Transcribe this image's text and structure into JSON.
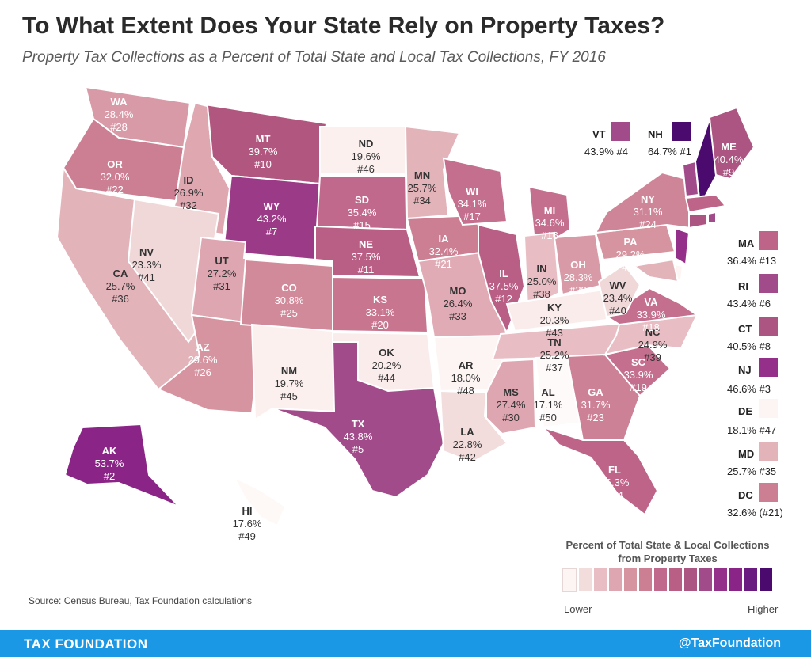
{
  "header": {
    "title": "To What Extent Does Your State Rely on Property Taxes?",
    "subtitle": "Property Tax Collections as a Percent of Total State and Local Tax Collections, FY 2016"
  },
  "states": [
    {
      "abbr": "WA",
      "value": "28.4%",
      "rank": "#28",
      "color": "#d99aa7"
    },
    {
      "abbr": "OR",
      "value": "32.0%",
      "rank": "#22",
      "color": "#cc7f93"
    },
    {
      "abbr": "CA",
      "value": "25.7%",
      "rank": "#36",
      "color": "#e3b3ba"
    },
    {
      "abbr": "ID",
      "value": "26.9%",
      "rank": "#32",
      "color": "#dfa8b1"
    },
    {
      "abbr": "NV",
      "value": "23.3%",
      "rank": "#41",
      "color": "#f0d8d9"
    },
    {
      "abbr": "MT",
      "value": "39.7%",
      "rank": "#10",
      "color": "#b1577f"
    },
    {
      "abbr": "WY",
      "value": "43.2%",
      "rank": "#7",
      "color": "#9b3a86"
    },
    {
      "abbr": "UT",
      "value": "27.2%",
      "rank": "#31",
      "color": "#dea6b0"
    },
    {
      "abbr": "AZ",
      "value": "29.6%",
      "rank": "#26",
      "color": "#d5949f"
    },
    {
      "abbr": "CO",
      "value": "30.8%",
      "rank": "#25",
      "color": "#d18a99"
    },
    {
      "abbr": "NM",
      "value": "19.7%",
      "rank": "#45",
      "color": "#fcf0ef"
    },
    {
      "abbr": "ND",
      "value": "19.6%",
      "rank": "#46",
      "color": "#fcf0ef"
    },
    {
      "abbr": "SD",
      "value": "35.4%",
      "rank": "#15",
      "color": "#c1698c"
    },
    {
      "abbr": "NE",
      "value": "37.5%",
      "rank": "#11",
      "color": "#b95f85"
    },
    {
      "abbr": "KS",
      "value": "33.1%",
      "rank": "#20",
      "color": "#c87690"
    },
    {
      "abbr": "OK",
      "value": "20.2%",
      "rank": "#44",
      "color": "#fbecec"
    },
    {
      "abbr": "TX",
      "value": "43.8%",
      "rank": "#5",
      "color": "#a24b8a"
    },
    {
      "abbr": "MN",
      "value": "25.7%",
      "rank": "#34",
      "color": "#e3b3ba"
    },
    {
      "abbr": "IA",
      "value": "32.4%",
      "rank": "#21",
      "color": "#cc7f93"
    },
    {
      "abbr": "MO",
      "value": "26.4%",
      "rank": "#33",
      "color": "#e0abb4"
    },
    {
      "abbr": "AR",
      "value": "18.0%",
      "rank": "#48",
      "color": "#fdf5f4"
    },
    {
      "abbr": "LA",
      "value": "22.8%",
      "rank": "#42",
      "color": "#f2dcdc"
    },
    {
      "abbr": "WI",
      "value": "34.1%",
      "rank": "#17",
      "color": "#c46f8e"
    },
    {
      "abbr": "IL",
      "value": "37.5%",
      "rank": "#12",
      "color": "#b95f85"
    },
    {
      "abbr": "MI",
      "value": "34.6%",
      "rank": "#16",
      "color": "#c46f8e"
    },
    {
      "abbr": "IN",
      "value": "25.0%",
      "rank": "#38",
      "color": "#e8bec4"
    },
    {
      "abbr": "OH",
      "value": "28.3%",
      "rank": "#29",
      "color": "#d99aa7"
    },
    {
      "abbr": "KY",
      "value": "20.3%",
      "rank": "#43",
      "color": "#fbecec"
    },
    {
      "abbr": "TN",
      "value": "25.2%",
      "rank": "#37",
      "color": "#e8bec4"
    },
    {
      "abbr": "MS",
      "value": "27.4%",
      "rank": "#30",
      "color": "#dea6b0"
    },
    {
      "abbr": "AL",
      "value": "17.1%",
      "rank": "#50",
      "color": "#fffafa"
    },
    {
      "abbr": "GA",
      "value": "31.7%",
      "rank": "#23",
      "color": "#cc8196"
    },
    {
      "abbr": "FL",
      "value": "36.3%",
      "rank": "#14",
      "color": "#bd6488"
    },
    {
      "abbr": "SC",
      "value": "33.9%",
      "rank": "#19",
      "color": "#c46f8e"
    },
    {
      "abbr": "NC",
      "value": "24.9%",
      "rank": "#39",
      "color": "#e8bec4"
    },
    {
      "abbr": "VA",
      "value": "33.9%",
      "rank": "#18",
      "color": "#c46f8e"
    },
    {
      "abbr": "WV",
      "value": "23.4%",
      "rank": "#40",
      "color": "#f0d8d9"
    },
    {
      "abbr": "PA",
      "value": "29.2%",
      "rank": "#27",
      "color": "#d5949f"
    },
    {
      "abbr": "NY",
      "value": "31.1%",
      "rank": "#24",
      "color": "#cf8598"
    },
    {
      "abbr": "ME",
      "value": "40.4%",
      "rank": "#9",
      "color": "#ad5582"
    },
    {
      "abbr": "AK",
      "value": "53.7%",
      "rank": "#2",
      "color": "#8a2486"
    },
    {
      "abbr": "HI",
      "value": "17.6%",
      "rank": "#49",
      "color": "#fef8f6"
    }
  ],
  "callouts": [
    {
      "abbr": "VT",
      "value": "43.9% #4",
      "color": "#a24b8a"
    },
    {
      "abbr": "NH",
      "value": "64.7% #1",
      "color": "#4b0a6e"
    },
    {
      "abbr": "MA",
      "value": "36.4% #13",
      "color": "#bd6488"
    },
    {
      "abbr": "RI",
      "value": "43.4% #6",
      "color": "#a24b8a"
    },
    {
      "abbr": "CT",
      "value": "40.5% #8",
      "color": "#ad5582"
    },
    {
      "abbr": "NJ",
      "value": "46.6% #3",
      "color": "#95308a"
    },
    {
      "abbr": "DE",
      "value": "18.1% #47",
      "color": "#fdf5f4"
    },
    {
      "abbr": "MD",
      "value": "25.7% #35",
      "color": "#e3b3ba"
    },
    {
      "abbr": "DC",
      "value": "32.6% (#21)",
      "color": "#cc7f93"
    }
  ],
  "legend": {
    "title": "Percent of Total State & Local Collections from Property Taxes",
    "low_label": "Lower",
    "high_label": "Higher",
    "colors": [
      "#fdf5f4",
      "#f2dcdc",
      "#e8bec4",
      "#dea6b0",
      "#d5949f",
      "#cc7f93",
      "#c1698c",
      "#b95f85",
      "#ad5582",
      "#a24b8a",
      "#95308a",
      "#8a2486",
      "#6b1a80",
      "#4b0a6e"
    ]
  },
  "source": "Source: Census Bureau, Tax Foundation calculations",
  "footer": {
    "brand": "TAX FOUNDATION",
    "handle": "@TaxFoundation",
    "color": "#1a98e6"
  }
}
